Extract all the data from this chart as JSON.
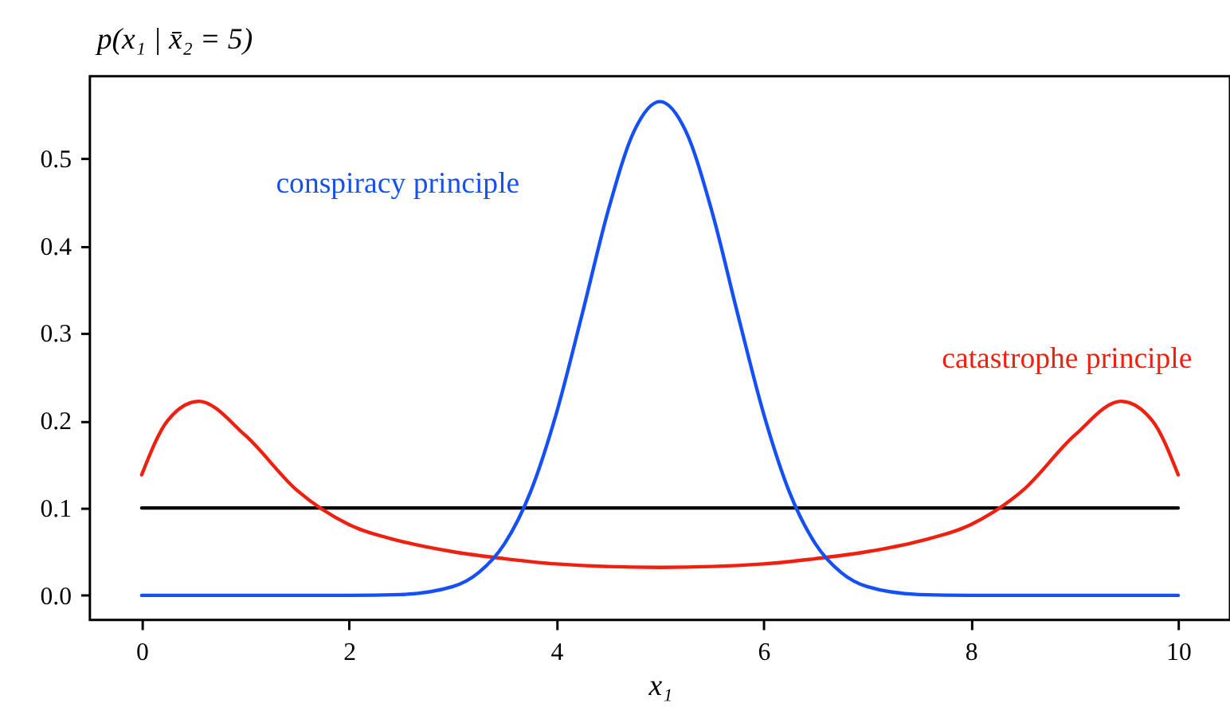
{
  "chart_data": {
    "type": "line",
    "ylabel": "p(x₁ | x̄₂ = 5)",
    "xlabel": "x₁",
    "xlim": [
      -0.5,
      10.5
    ],
    "xticks": [
      0,
      2,
      4,
      6,
      8,
      10
    ],
    "ylim": [
      -0.028,
      0.594
    ],
    "yticks": [
      {
        "value": 0,
        "label": "0.0"
      },
      {
        "value": 0.1,
        "label": "0.1"
      },
      {
        "value": 0.2,
        "label": "0.2"
      },
      {
        "value": 0.3,
        "label": "0.3"
      },
      {
        "value": 0.4,
        "label": "0.4"
      },
      {
        "value": 0.5,
        "label": "0.5"
      }
    ],
    "grid": false,
    "marker": "none",
    "line_style": "solid",
    "series": [
      {
        "color": "#000000",
        "x": [
          0,
          10
        ],
        "values": [
          0.1,
          0.1
        ]
      },
      {
        "name": "catastrophe principle",
        "color": "#f02010",
        "x": [
          0,
          0.25,
          0.55,
          1,
          1.5,
          2,
          2.5,
          3,
          3.5,
          4,
          5,
          6,
          6.5,
          7,
          7.5,
          8,
          8.5,
          9,
          9.45,
          9.75,
          10
        ],
        "values": [
          0.138,
          0.2,
          0.222,
          0.183,
          0.12,
          0.081,
          0.062,
          0.05,
          0.042,
          0.036,
          0.032,
          0.036,
          0.042,
          0.05,
          0.062,
          0.081,
          0.12,
          0.183,
          0.222,
          0.2,
          0.138
        ]
      },
      {
        "name": "conspiracy principle",
        "color": "#1550f5",
        "x": [
          0,
          1,
          2,
          2.5,
          3,
          3.25,
          3.5,
          3.75,
          4,
          4.25,
          4.5,
          4.75,
          5,
          5.25,
          5.5,
          5.75,
          6,
          6.25,
          6.5,
          6.75,
          7,
          7.5,
          8,
          9,
          10
        ],
        "values": [
          0,
          0,
          0,
          0.001,
          0.01,
          0.026,
          0.059,
          0.118,
          0.208,
          0.322,
          0.44,
          0.531,
          0.565,
          0.531,
          0.44,
          0.322,
          0.208,
          0.118,
          0.059,
          0.026,
          0.01,
          0.001,
          0,
          0,
          0
        ]
      }
    ]
  }
}
